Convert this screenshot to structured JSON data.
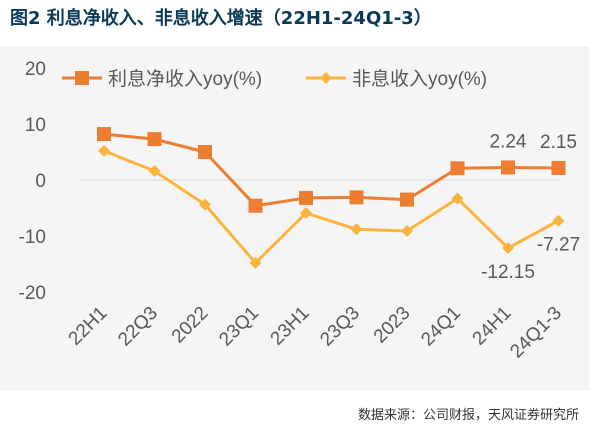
{
  "figure": {
    "title": "图2  利息净收入、非息收入增速（22H1-24Q1-3）",
    "source": "数据来源：公司财报，天风证券研究所"
  },
  "chart_data": {
    "type": "line",
    "categories": [
      "22H1",
      "22Q3",
      "2022",
      "23Q1",
      "23H1",
      "23Q3",
      "2023",
      "24Q1",
      "24H1",
      "24Q1-3"
    ],
    "series": [
      {
        "name": "利息净收入yoy(%)",
        "color": "#ed7d31",
        "marker": "square",
        "values": [
          8.2,
          7.3,
          5.0,
          -4.6,
          -3.2,
          -3.1,
          -3.5,
          2.1,
          2.24,
          2.15
        ]
      },
      {
        "name": "非息收入yoy(%)",
        "color": "#fbb43e",
        "marker": "diamond",
        "values": [
          5.2,
          1.6,
          -4.4,
          -14.8,
          -5.9,
          -8.8,
          -9.1,
          -3.3,
          -12.15,
          -7.27
        ]
      }
    ],
    "annotations": [
      {
        "text": "2.24",
        "series": 0,
        "index": 8,
        "position": "above"
      },
      {
        "text": "2.15",
        "series": 0,
        "index": 9,
        "position": "above"
      },
      {
        "text": "-12.15",
        "series": 1,
        "index": 8,
        "position": "below"
      },
      {
        "text": "-7.27",
        "series": 1,
        "index": 9,
        "position": "below"
      }
    ],
    "yticks": [
      20,
      10,
      0,
      -10,
      -20
    ],
    "ylim": [
      -20,
      20
    ],
    "grid": false,
    "legend": "top"
  }
}
